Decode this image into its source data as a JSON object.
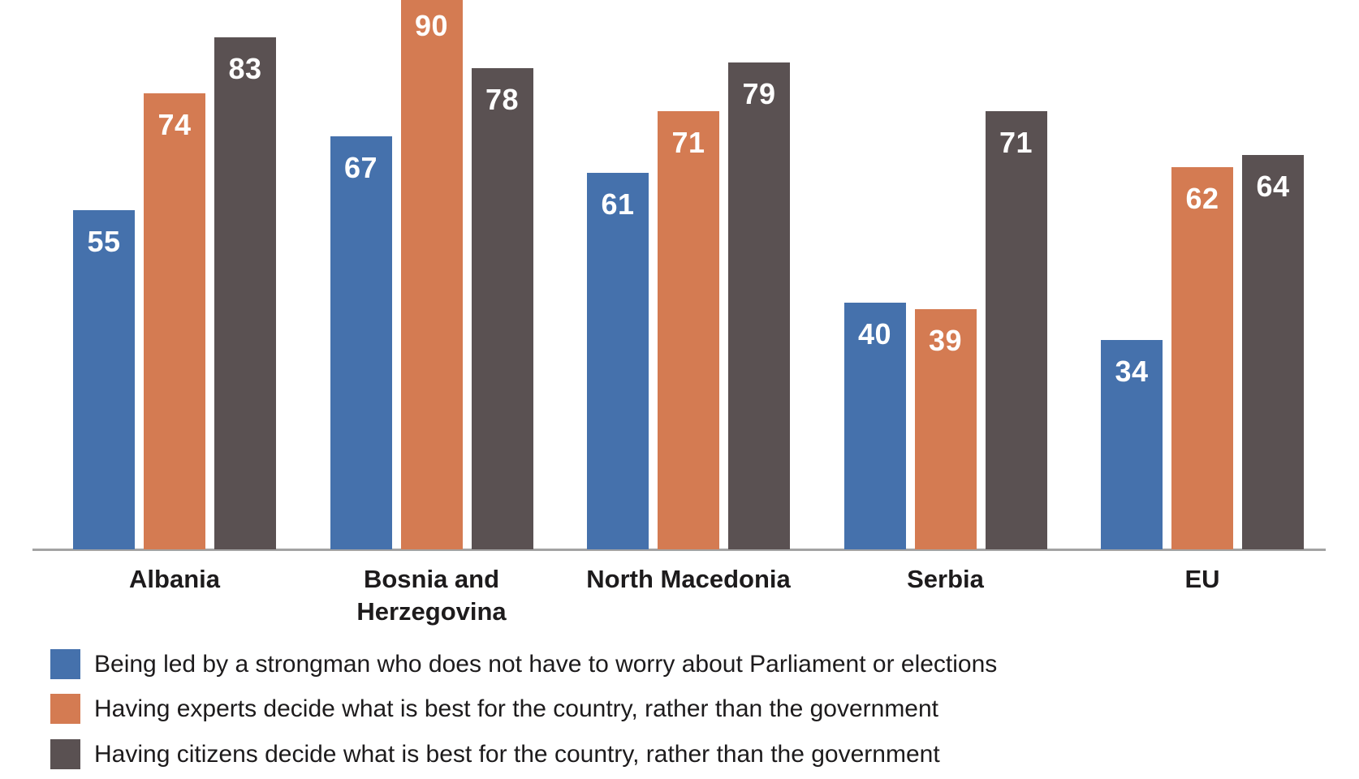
{
  "chart_data": {
    "type": "bar",
    "title": "",
    "xlabel": "",
    "ylabel": "",
    "ylim": [
      0,
      89
    ],
    "grid": false,
    "value_labels_shown": true,
    "note": "top of the 90-value bar is cut off by the image edge",
    "categories": [
      "Albania",
      "Bosnia and Herzegovina",
      "North Macedonia",
      "Serbia",
      "EU"
    ],
    "series": [
      {
        "name": "Being led by a strongman who does not have to worry about Parliament or elections",
        "color": "#4571ac",
        "values": [
          55,
          67,
          61,
          40,
          34
        ]
      },
      {
        "name": "Having experts decide what is best for the country, rather than the government",
        "color": "#d47b52",
        "values": [
          74,
          90,
          71,
          39,
          62
        ]
      },
      {
        "name": "Having citizens decide what is best for the country, rather than the government",
        "color": "#5a5152",
        "values": [
          83,
          78,
          79,
          71,
          64
        ]
      }
    ],
    "legend_position": "bottom-left",
    "axis_line_color": "#a3a3a3",
    "label_text_color": "#1d1b1c",
    "value_text_color": "#ffffff"
  }
}
